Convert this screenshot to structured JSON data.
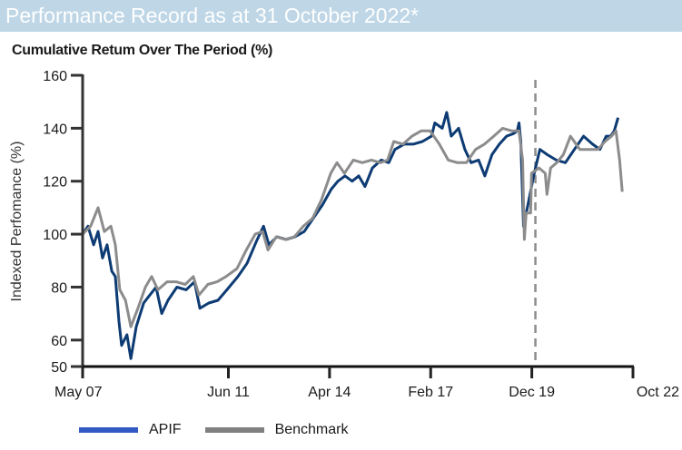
{
  "header": {
    "title": "Performance Record as at 31 October 2022*"
  },
  "chart_data": {
    "type": "line",
    "title": "Cumulative Retum Over The Period (%)",
    "xlabel": "",
    "ylabel": "Indexed Perfomance (%)",
    "x_unit": "months since May 2007",
    "xlim": [
      0,
      185
    ],
    "ylim": [
      50,
      160
    ],
    "yticks": [
      50,
      60,
      80,
      100,
      120,
      140,
      160
    ],
    "xticks": [
      {
        "label": "May 07",
        "x": 0
      },
      {
        "label": "Jun 11",
        "x": 49
      },
      {
        "label": "Apr 14",
        "x": 83
      },
      {
        "label": "Feb 17",
        "x": 117
      },
      {
        "label": "Dec 19",
        "x": 151
      },
      {
        "label": "Oct 22",
        "x": 185
      }
    ],
    "grid": false,
    "legend_position": "bottom-left",
    "reference_line": {
      "x": 152.2,
      "style": "dashed",
      "color": "#8c8c8c"
    },
    "series": [
      {
        "name": "APIF",
        "color": "#0d3b73",
        "legend_color": "#3359c4",
        "x": [
          0,
          1.8,
          3.7,
          5.2,
          6.7,
          8.2,
          9.8,
          11,
          12.2,
          13.1,
          14.9,
          16.2,
          18,
          20.5,
          22.6,
          24.7,
          26.6,
          28.7,
          31.7,
          34.8,
          37.6,
          39.4,
          42.4,
          45.5,
          48.5,
          52.2,
          55.3,
          58.3,
          60.8,
          62.6,
          65.3,
          68.4,
          71.4,
          74.5,
          77.5,
          80.6,
          83.6,
          85.8,
          88.2,
          90.6,
          92.8,
          94.9,
          97.4,
          100.4,
          102.9,
          105,
          108.1,
          111.1,
          114.2,
          117.3,
          118.4,
          120.9,
          122.4,
          123.9,
          126.4,
          128.5,
          130.6,
          133.1,
          135.2,
          137.6,
          140.1,
          142.5,
          144.9,
          146.1,
          146.7,
          147.3,
          148.2,
          149.5,
          151.6,
          153.7,
          156.2,
          159.2,
          162.3,
          165.3,
          168.4,
          171.4,
          173.9,
          176,
          177.5,
          178.7,
          180
        ],
        "y": [
          100,
          103,
          96,
          101,
          91,
          96,
          86,
          84,
          67,
          58,
          62,
          53,
          65,
          74,
          77,
          80,
          70,
          75,
          80,
          79,
          82,
          72,
          74,
          75,
          79,
          84,
          89,
          97,
          103,
          96,
          99,
          98,
          99,
          101,
          106,
          111,
          117,
          120,
          122,
          120,
          122,
          118,
          125,
          128,
          127,
          132,
          134,
          134,
          135,
          137,
          142,
          140,
          146,
          137,
          140,
          132,
          127,
          128,
          122,
          130,
          134,
          137,
          138,
          139,
          142,
          135,
          103,
          110,
          122,
          132,
          130,
          128,
          127,
          132,
          137,
          134,
          132,
          137,
          137,
          139,
          144
        ]
      },
      {
        "name": "Benchmark",
        "color": "#8c8c8c",
        "legend_color": "#808080",
        "x": [
          0,
          2.7,
          5.2,
          7.3,
          9.5,
          11,
          12.5,
          14.4,
          16.2,
          18.6,
          21.1,
          23.2,
          25.3,
          28.4,
          31.4,
          34.5,
          37.2,
          39.1,
          42.1,
          45.2,
          48.2,
          51.9,
          55,
          58,
          60.5,
          62.3,
          65.1,
          68.1,
          71.2,
          74.2,
          77.3,
          80.3,
          83.4,
          85.5,
          88,
          91,
          94,
          97.1,
          100.1,
          102.5,
          104.6,
          107.7,
          110.7,
          113.8,
          116.8,
          119.9,
          122.9,
          126,
          129,
          132.1,
          135.1,
          138.2,
          141.2,
          144.3,
          146.7,
          147.9,
          148.5,
          149.1,
          150.6,
          150.9,
          153.4,
          155.5,
          156.1,
          157.3,
          159.4,
          161.6,
          164,
          167.1,
          170.2,
          173.2,
          175.6,
          177.8,
          179.3,
          180.5,
          181.4
        ],
        "y": [
          100,
          103,
          110,
          101,
          103,
          96,
          79,
          75,
          65,
          72,
          80,
          84,
          79,
          82,
          82,
          81,
          84,
          77,
          81,
          82,
          84,
          87,
          94,
          100,
          101,
          94,
          99,
          98,
          99,
          103,
          106,
          113,
          123,
          127,
          123,
          128,
          127,
          128,
          127,
          128,
          135,
          134,
          137,
          139,
          139,
          134,
          128,
          127,
          127,
          132,
          134,
          137,
          140,
          139,
          139,
          128,
          98,
          108,
          108,
          123,
          125,
          123,
          115,
          125,
          127,
          130,
          137,
          132,
          132,
          132,
          135,
          137,
          139,
          128,
          116
        ]
      }
    ]
  }
}
